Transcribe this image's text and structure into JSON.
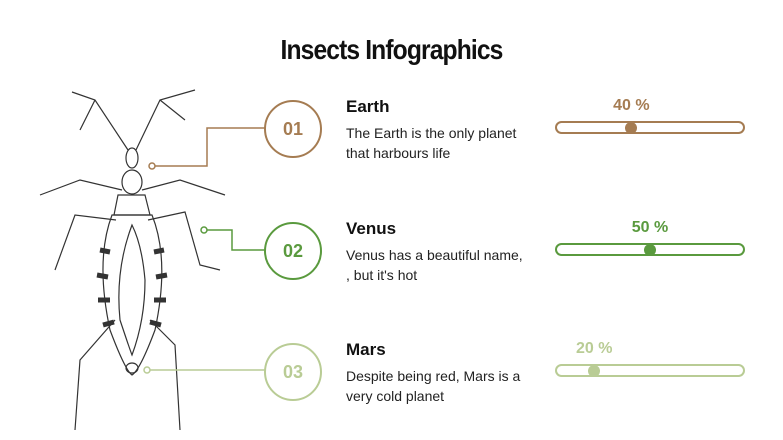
{
  "title": "Insects Infographics",
  "colors": [
    "#a57c52",
    "#5a9a3e",
    "#b9cc95"
  ],
  "items": [
    {
      "number": "01",
      "title": "Earth",
      "description": "The Earth is the only planet that harbours life",
      "percent_label": "40 %",
      "percent": 40
    },
    {
      "number": "02",
      "title": "Venus",
      "description": "Venus has a beautiful name, , but it's hot",
      "percent_label": "50 %",
      "percent": 50
    },
    {
      "number": "03",
      "title": "Mars",
      "description": "Despite being red, Mars is a very cold planet",
      "percent_label": "20 %",
      "percent": 20
    }
  ],
  "illustration": "insect-sketch"
}
